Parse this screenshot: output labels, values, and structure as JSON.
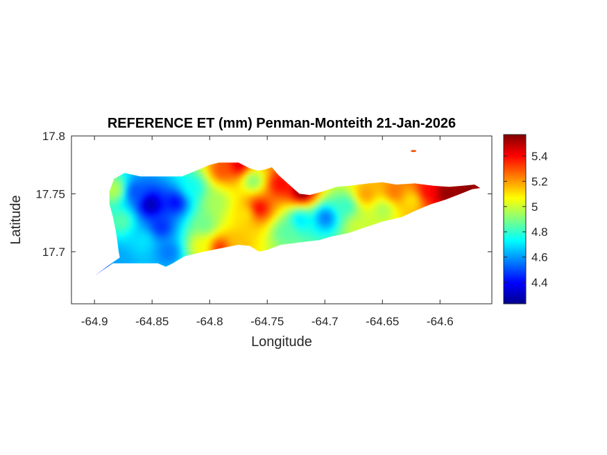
{
  "figure": {
    "title": "REFERENCE ET (mm) Penman-Monteith 21-Jan-2026",
    "xlabel": "Longitude",
    "ylabel": "Latitude",
    "x_ticks": [
      "-64.9",
      "-64.85",
      "-64.8",
      "-64.75",
      "-64.7",
      "-64.65",
      "-64.6"
    ],
    "y_ticks": [
      "17.8",
      "17.75",
      "17.7"
    ],
    "colorbar_ticks": [
      "5.4",
      "5.2",
      "5",
      "4.8",
      "4.6",
      "4.4"
    ]
  },
  "chart_data": {
    "type": "heatmap",
    "title": "REFERENCE ET (mm) Penman-Monteith 21-Jan-2026",
    "xlabel": "Longitude",
    "ylabel": "Latitude",
    "xlim": [
      -64.92,
      -64.555
    ],
    "ylim": [
      17.655,
      17.8
    ],
    "clim": [
      4.23,
      5.57
    ],
    "colormap": "jet",
    "x_ticks": [
      -64.9,
      -64.85,
      -64.8,
      -64.75,
      -64.7,
      -64.65,
      -64.6
    ],
    "y_ticks": [
      17.7,
      17.75,
      17.8
    ],
    "colorbar_ticks": [
      4.4,
      4.6,
      4.8,
      5.0,
      5.2,
      5.4
    ],
    "island_outline_lonlat": [
      [
        -64.9,
        17.679
      ],
      [
        -64.893,
        17.684
      ],
      [
        -64.884,
        17.69
      ],
      [
        -64.86,
        17.69
      ],
      [
        -64.845,
        17.69
      ],
      [
        -64.838,
        17.687
      ],
      [
        -64.832,
        17.69
      ],
      [
        -64.822,
        17.696
      ],
      [
        -64.805,
        17.7
      ],
      [
        -64.79,
        17.703
      ],
      [
        -64.775,
        17.706
      ],
      [
        -64.765,
        17.705
      ],
      [
        -64.757,
        17.7
      ],
      [
        -64.749,
        17.702
      ],
      [
        -64.738,
        17.706
      ],
      [
        -64.722,
        17.708
      ],
      [
        -64.705,
        17.71
      ],
      [
        -64.695,
        17.713
      ],
      [
        -64.68,
        17.716
      ],
      [
        -64.665,
        17.721
      ],
      [
        -64.65,
        17.726
      ],
      [
        -64.633,
        17.73
      ],
      [
        -64.62,
        17.736
      ],
      [
        -64.608,
        17.741
      ],
      [
        -64.595,
        17.745
      ],
      [
        -64.582,
        17.75
      ],
      [
        -64.572,
        17.754
      ],
      [
        -64.565,
        17.755
      ],
      [
        -64.57,
        17.758
      ],
      [
        -64.58,
        17.757
      ],
      [
        -64.592,
        17.756
      ],
      [
        -64.606,
        17.757
      ],
      [
        -64.622,
        17.759
      ],
      [
        -64.638,
        17.758
      ],
      [
        -64.65,
        17.76
      ],
      [
        -64.662,
        17.759
      ],
      [
        -64.678,
        17.757
      ],
      [
        -64.69,
        17.756
      ],
      [
        -64.702,
        17.752
      ],
      [
        -64.713,
        17.749
      ],
      [
        -64.722,
        17.75
      ],
      [
        -64.73,
        17.757
      ],
      [
        -64.74,
        17.766
      ],
      [
        -64.746,
        17.773
      ],
      [
        -64.752,
        17.771
      ],
      [
        -64.758,
        17.77
      ],
      [
        -64.765,
        17.772
      ],
      [
        -64.775,
        17.777
      ],
      [
        -64.785,
        17.777
      ],
      [
        -64.792,
        17.777
      ],
      [
        -64.8,
        17.775
      ],
      [
        -64.812,
        17.77
      ],
      [
        -64.824,
        17.765
      ],
      [
        -64.836,
        17.765
      ],
      [
        -64.85,
        17.765
      ],
      [
        -64.86,
        17.765
      ],
      [
        -64.874,
        17.768
      ],
      [
        -64.883,
        17.763
      ],
      [
        -64.887,
        17.752
      ],
      [
        -64.887,
        17.741
      ],
      [
        -64.884,
        17.73
      ],
      [
        -64.881,
        17.715
      ],
      [
        -64.879,
        17.7
      ],
      [
        -64.878,
        17.695
      ],
      [
        -64.888,
        17.688
      ],
      [
        -64.896,
        17.682
      ]
    ],
    "islet_lonlat": [
      -64.623,
      17.787
    ],
    "value_field_anchors": [
      {
        "lon": -64.852,
        "lat": 17.741,
        "value": 4.27
      },
      {
        "lon": -64.83,
        "lat": 17.743,
        "value": 4.4
      },
      {
        "lon": -64.866,
        "lat": 17.752,
        "value": 4.5
      },
      {
        "lon": -64.843,
        "lat": 17.722,
        "value": 4.45
      },
      {
        "lon": -64.858,
        "lat": 17.71,
        "value": 4.7
      },
      {
        "lon": -64.836,
        "lat": 17.7,
        "value": 4.55
      },
      {
        "lon": -64.895,
        "lat": 17.682,
        "value": 4.42
      },
      {
        "lon": -64.879,
        "lat": 17.694,
        "value": 4.62
      },
      {
        "lon": -64.877,
        "lat": 17.727,
        "value": 4.85
      },
      {
        "lon": -64.883,
        "lat": 17.754,
        "value": 4.98
      },
      {
        "lon": -64.815,
        "lat": 17.756,
        "value": 4.75
      },
      {
        "lon": -64.795,
        "lat": 17.743,
        "value": 4.95
      },
      {
        "lon": -64.805,
        "lat": 17.724,
        "value": 4.88
      },
      {
        "lon": -64.808,
        "lat": 17.706,
        "value": 5.05
      },
      {
        "lon": -64.792,
        "lat": 17.704,
        "value": 5.35
      },
      {
        "lon": -64.776,
        "lat": 17.709,
        "value": 5.15
      },
      {
        "lon": -64.79,
        "lat": 17.771,
        "value": 5.3
      },
      {
        "lon": -64.775,
        "lat": 17.775,
        "value": 5.45
      },
      {
        "lon": -64.763,
        "lat": 17.762,
        "value": 4.9
      },
      {
        "lon": -64.758,
        "lat": 17.738,
        "value": 5.42
      },
      {
        "lon": -64.77,
        "lat": 17.733,
        "value": 5.1
      },
      {
        "lon": -64.74,
        "lat": 17.759,
        "value": 5.4
      },
      {
        "lon": -64.72,
        "lat": 17.752,
        "value": 5.57
      },
      {
        "lon": -64.722,
        "lat": 17.728,
        "value": 4.7
      },
      {
        "lon": -64.735,
        "lat": 17.718,
        "value": 4.85
      },
      {
        "lon": -64.7,
        "lat": 17.73,
        "value": 4.55
      },
      {
        "lon": -64.682,
        "lat": 17.74,
        "value": 4.8
      },
      {
        "lon": -64.672,
        "lat": 17.722,
        "value": 5.0
      },
      {
        "lon": -64.665,
        "lat": 17.75,
        "value": 5.2
      },
      {
        "lon": -64.65,
        "lat": 17.737,
        "value": 4.95
      },
      {
        "lon": -64.64,
        "lat": 17.752,
        "value": 5.25
      },
      {
        "lon": -64.625,
        "lat": 17.745,
        "value": 5.1
      },
      {
        "lon": -64.612,
        "lat": 17.752,
        "value": 5.4
      },
      {
        "lon": -64.595,
        "lat": 17.751,
        "value": 5.55
      },
      {
        "lon": -64.578,
        "lat": 17.754,
        "value": 5.55
      },
      {
        "lon": -64.623,
        "lat": 17.787,
        "value": 5.3
      }
    ]
  }
}
